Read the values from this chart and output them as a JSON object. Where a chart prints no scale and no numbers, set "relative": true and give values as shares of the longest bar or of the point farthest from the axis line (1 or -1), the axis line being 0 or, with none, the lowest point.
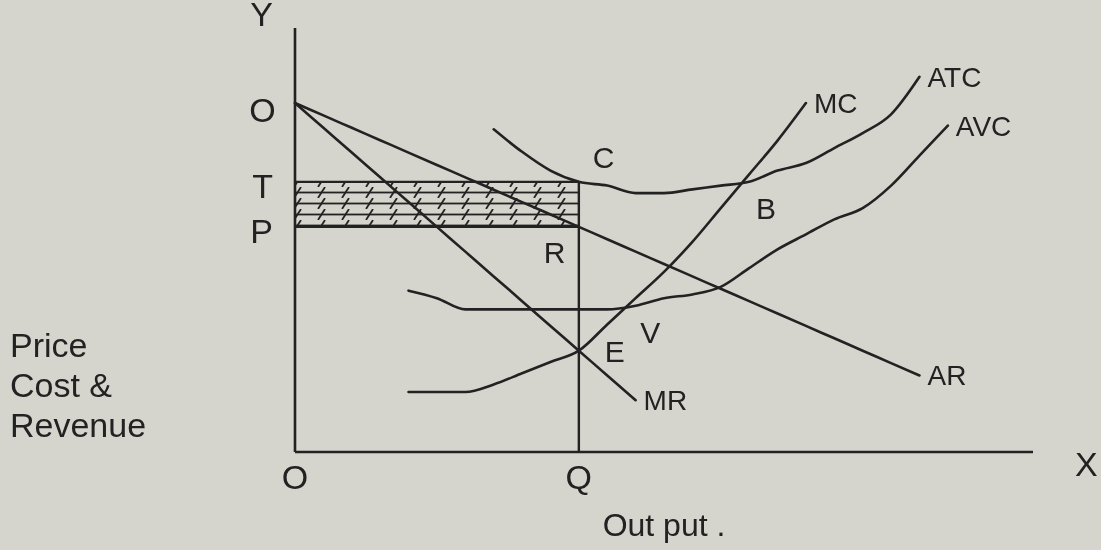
{
  "chart_data": {
    "type": "line",
    "relative": true,
    "xlabel": "Out put .",
    "ylabel": "Price Cost & Revenue",
    "legend": false,
    "categories": [
      "O",
      null,
      null,
      null,
      null,
      null,
      null,
      null,
      null,
      null,
      "Q",
      null,
      null,
      null,
      null,
      null,
      null,
      null,
      null,
      null,
      null,
      null,
      null,
      null,
      null,
      null,
      null
    ],
    "series": [
      {
        "name": "MC",
        "color": "#222222",
        "values": [
          null,
          null,
          null,
          null,
          0.16,
          0.16,
          0.16,
          0.18,
          0.21,
          0.24,
          0.27,
          0.34,
          0.41,
          0.48,
          0.56,
          0.65,
          0.74,
          0.83,
          0.93,
          null,
          null,
          null,
          null,
          null,
          null,
          null,
          null
        ]
      },
      {
        "name": "ATC",
        "color": "#222222",
        "values": [
          null,
          null,
          null,
          null,
          null,
          null,
          null,
          0.86,
          0.8,
          0.75,
          0.72,
          0.71,
          0.69,
          0.69,
          0.7,
          0.71,
          0.72,
          0.75,
          0.77,
          0.81,
          0.85,
          0.9,
          1.0,
          null,
          null,
          null,
          null
        ]
      },
      {
        "name": "AVC",
        "color": "#222222",
        "values": [
          null,
          null,
          null,
          null,
          0.43,
          0.41,
          0.38,
          0.38,
          0.38,
          0.38,
          0.38,
          0.38,
          0.39,
          0.41,
          0.42,
          0.44,
          0.49,
          0.54,
          0.58,
          0.62,
          0.65,
          0.71,
          0.79,
          0.87,
          null,
          null,
          null
        ]
      },
      {
        "name": "AR",
        "color": "#222222",
        "values": [
          0.93,
          0.897,
          0.864,
          0.831,
          0.798,
          0.765,
          0.732,
          0.699,
          0.666,
          0.633,
          0.6,
          0.567,
          0.534,
          0.501,
          0.468,
          0.435,
          0.402,
          0.369,
          0.336,
          0.303,
          0.27,
          0.237,
          0.204,
          null,
          null,
          null,
          null
        ]
      },
      {
        "name": "MR",
        "color": "#222222",
        "values": [
          0.93,
          0.864,
          0.798,
          0.732,
          0.666,
          0.6,
          0.534,
          0.468,
          0.402,
          0.336,
          0.27,
          0.204,
          0.138,
          null,
          null,
          null,
          null,
          null,
          null,
          null,
          null,
          null,
          null,
          null,
          null,
          null,
          null
        ]
      }
    ],
    "ref_lines": [
      {
        "axis": "y",
        "value": 0.72,
        "label": "T"
      },
      {
        "axis": "y",
        "value": 0.6,
        "label": "P"
      },
      {
        "axis": "x",
        "value": "Q"
      }
    ],
    "bands": [
      {
        "axis": "y",
        "from": 0.6,
        "to": 0.72,
        "color": "#222222"
      }
    ],
    "annotations": [
      "Y",
      {
        "text": "O",
        "x": "O",
        "y": 0.93
      },
      {
        "text": "C",
        "x": "Q",
        "y": 0.72
      },
      {
        "text": "R",
        "x": "Q",
        "y": 0.6
      },
      {
        "text": "B",
        "y": 0.72
      },
      {
        "text": "V",
        "y": 0.39
      },
      {
        "text": "E",
        "x": "Q",
        "y": 0.27
      },
      "X"
    ]
  }
}
